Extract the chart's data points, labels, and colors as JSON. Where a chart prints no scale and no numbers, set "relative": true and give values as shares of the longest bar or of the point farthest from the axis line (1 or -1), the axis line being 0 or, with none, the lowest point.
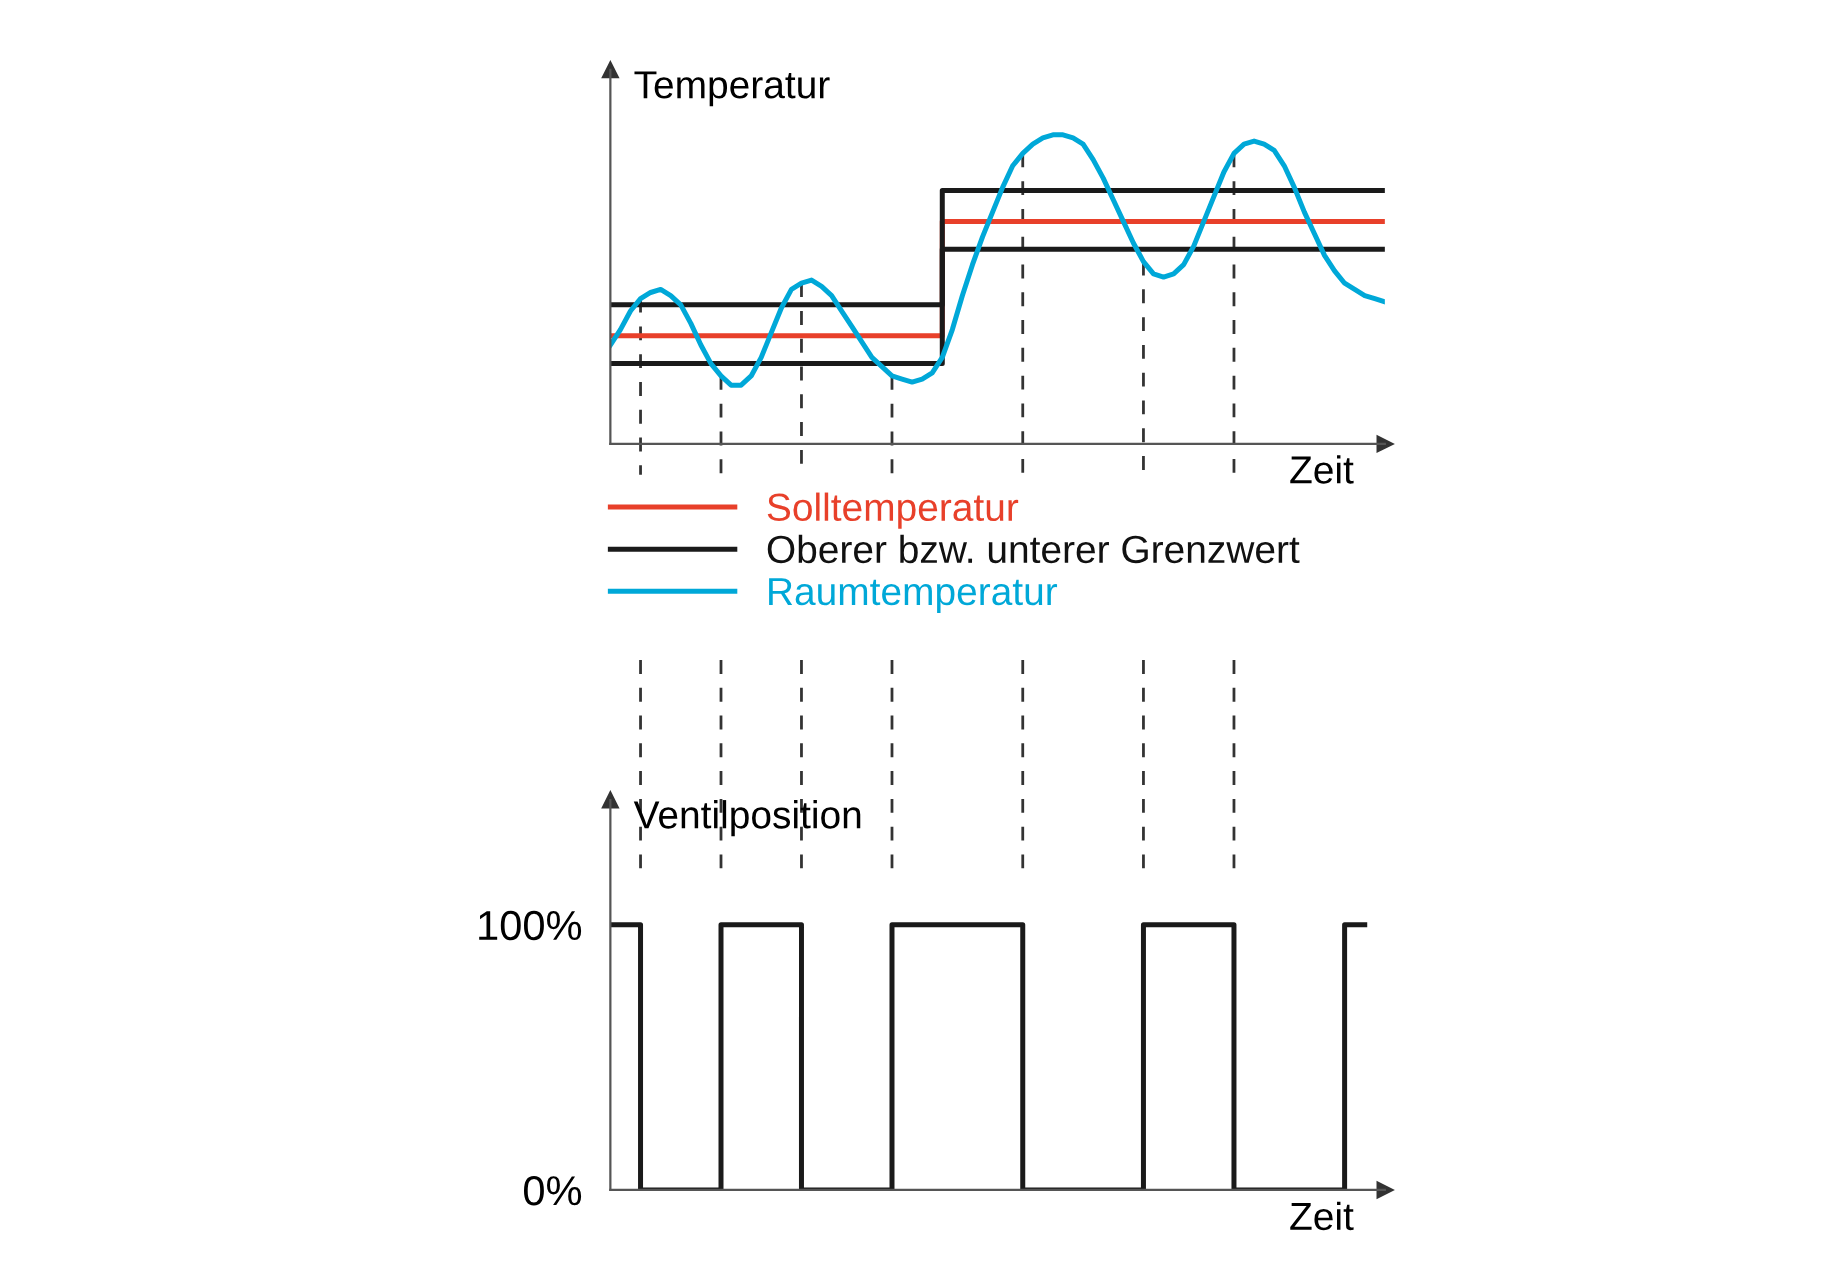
{
  "chart_data": [
    {
      "type": "line",
      "relative": true,
      "ylabel": "Temperatur",
      "xlabel": "Zeit",
      "tick_labels": false,
      "legend": "bottom left",
      "grid": false,
      "categories": [
        null,
        null,
        null,
        null,
        null,
        null,
        null,
        null,
        null,
        null,
        null,
        null,
        null,
        null,
        null,
        null,
        null,
        null,
        null,
        null,
        null,
        null,
        null,
        null,
        null,
        null,
        null,
        null,
        null,
        null,
        null,
        null,
        null,
        null,
        null,
        null,
        null,
        null,
        null,
        null,
        null,
        null,
        null,
        null,
        null,
        null,
        null,
        null,
        null,
        null,
        null,
        null,
        null,
        null,
        null,
        null,
        null,
        null,
        null,
        null,
        null,
        null,
        null,
        null,
        null,
        null,
        null,
        null,
        null,
        null,
        null,
        null,
        null,
        null,
        null,
        null,
        null,
        null
      ],
      "series": [
        {
          "name": "Solltemperatur",
          "type": "step",
          "color": "#e8402a",
          "values": [
            0.35,
            0.35,
            0.35,
            0.35,
            0.35,
            0.35,
            0.35,
            0.35,
            0.35,
            0.35,
            0.35,
            0.35,
            0.35,
            0.35,
            0.35,
            0.35,
            0.35,
            0.35,
            0.35,
            0.35,
            0.35,
            0.35,
            0.35,
            0.35,
            0.35,
            0.35,
            0.35,
            0.35,
            0.35,
            0.35,
            0.35,
            0.35,
            0.35,
            0.72,
            0.72,
            0.72,
            0.72,
            0.72,
            0.72,
            0.72,
            0.72,
            0.72,
            0.72,
            0.72,
            0.72,
            0.72,
            0.72,
            0.72,
            0.72,
            0.72,
            0.72,
            0.72,
            0.72,
            0.72,
            0.72,
            0.72,
            0.72,
            0.72,
            0.72,
            0.72,
            0.72,
            0.72,
            0.72,
            0.72,
            0.72,
            0.72,
            0.72,
            0.72,
            0.72,
            0.72,
            0.72,
            0.72,
            0.72,
            0.72,
            0.72,
            0.72,
            0.72,
            0.72
          ]
        },
        {
          "name": "Oberer bzw. unterer Grenzwert",
          "type": "step",
          "color": "#1a1a1a",
          "values": [
            0.45,
            0.45,
            0.45,
            0.45,
            0.45,
            0.45,
            0.45,
            0.45,
            0.45,
            0.45,
            0.45,
            0.45,
            0.45,
            0.45,
            0.45,
            0.45,
            0.45,
            0.45,
            0.45,
            0.45,
            0.45,
            0.45,
            0.45,
            0.45,
            0.45,
            0.45,
            0.45,
            0.45,
            0.45,
            0.45,
            0.45,
            0.45,
            0.45,
            0.82,
            0.82,
            0.82,
            0.82,
            0.82,
            0.82,
            0.82,
            0.82,
            0.82,
            0.82,
            0.82,
            0.82,
            0.82,
            0.82,
            0.82,
            0.82,
            0.82,
            0.82,
            0.82,
            0.82,
            0.82,
            0.82,
            0.82,
            0.82,
            0.82,
            0.82,
            0.82,
            0.82,
            0.82,
            0.82,
            0.82,
            0.82,
            0.82,
            0.82,
            0.82,
            0.82,
            0.82,
            0.82,
            0.82,
            0.82,
            0.82,
            0.82,
            0.82,
            0.82,
            0.82
          ]
        },
        {
          "type": "step",
          "color": "#1a1a1a",
          "values": [
            0.26,
            0.26,
            0.26,
            0.26,
            0.26,
            0.26,
            0.26,
            0.26,
            0.26,
            0.26,
            0.26,
            0.26,
            0.26,
            0.26,
            0.26,
            0.26,
            0.26,
            0.26,
            0.26,
            0.26,
            0.26,
            0.26,
            0.26,
            0.26,
            0.26,
            0.26,
            0.26,
            0.26,
            0.26,
            0.26,
            0.26,
            0.26,
            0.26,
            0.63,
            0.63,
            0.63,
            0.63,
            0.63,
            0.63,
            0.63,
            0.63,
            0.63,
            0.63,
            0.63,
            0.63,
            0.63,
            0.63,
            0.63,
            0.63,
            0.63,
            0.63,
            0.63,
            0.63,
            0.63,
            0.63,
            0.63,
            0.63,
            0.63,
            0.63,
            0.63,
            0.63,
            0.63,
            0.63,
            0.63,
            0.63,
            0.63,
            0.63,
            0.63,
            0.63,
            0.63,
            0.63,
            0.63,
            0.63,
            0.63,
            0.63,
            0.63,
            0.63,
            0.63
          ]
        },
        {
          "name": "Raumtemperatur",
          "type": "line",
          "color": "#00a8d8",
          "values": [
            0.32,
            0.37,
            0.43,
            0.47,
            0.49,
            0.5,
            0.48,
            0.45,
            0.39,
            0.32,
            0.26,
            0.22,
            0.19,
            0.19,
            0.22,
            0.28,
            0.36,
            0.44,
            0.5,
            0.52,
            0.53,
            0.51,
            0.48,
            0.43,
            0.38,
            0.33,
            0.28,
            0.25,
            0.22,
            0.21,
            0.2,
            0.21,
            0.23,
            0.28,
            0.37,
            0.48,
            0.58,
            0.67,
            0.75,
            0.83,
            0.9,
            0.94,
            0.97,
            0.99,
            1,
            1,
            0.99,
            0.97,
            0.92,
            0.86,
            0.79,
            0.72,
            0.65,
            0.59,
            0.55,
            0.54,
            0.55,
            0.58,
            0.64,
            0.72,
            0.8,
            0.88,
            0.94,
            0.97,
            0.98,
            0.97,
            0.95,
            0.9,
            0.83,
            0.75,
            0.68,
            0.61,
            0.56,
            0.52,
            0.5,
            0.48,
            0.47,
            0.46
          ]
        }
      ],
      "line_style": "solid"
    },
    {
      "type": "step",
      "ylabel": "Ventilposition",
      "xlabel": "Zeit",
      "tick_labels": "y",
      "grid": false,
      "ylim": [
        0,
        147
      ],
      "yticks": [
        {
          "value": 0,
          "label": "0%"
        },
        {
          "value": 100,
          "label": "100%"
        }
      ],
      "categories": [
        null,
        null,
        null,
        null,
        null,
        null,
        null,
        null,
        null,
        null,
        null,
        null,
        null,
        null,
        null,
        null,
        null,
        null,
        null,
        null,
        null,
        null,
        null,
        null,
        null,
        null,
        null,
        null,
        null,
        null,
        null,
        null,
        null,
        null,
        null,
        null,
        null,
        null,
        null,
        null,
        null,
        null,
        null,
        null,
        null,
        null,
        null,
        null,
        null,
        null,
        null,
        null,
        null,
        null,
        null,
        null,
        null,
        null,
        null,
        null,
        null,
        null,
        null,
        null,
        null,
        null,
        null,
        null,
        null,
        null,
        null,
        null,
        null,
        null,
        null,
        null,
        null,
        null
      ],
      "series": [
        {
          "color": "#1a1a1a",
          "values": [
            100,
            100,
            100,
            0,
            0,
            0,
            0,
            0,
            0,
            0,
            0,
            100,
            100,
            100,
            100,
            100,
            100,
            100,
            100,
            0,
            0,
            0,
            0,
            0,
            0,
            0,
            0,
            0,
            100,
            100,
            100,
            100,
            100,
            100,
            100,
            100,
            100,
            100,
            100,
            100,
            100,
            0,
            0,
            0,
            0,
            0,
            0,
            0,
            0,
            0,
            0,
            0,
            0,
            100,
            100,
            100,
            100,
            100,
            100,
            100,
            100,
            100,
            0,
            0,
            0,
            0,
            0,
            0,
            0,
            0,
            0,
            0,
            0,
            100,
            100,
            100,
            null,
            null
          ]
        }
      ]
    }
  ]
}
